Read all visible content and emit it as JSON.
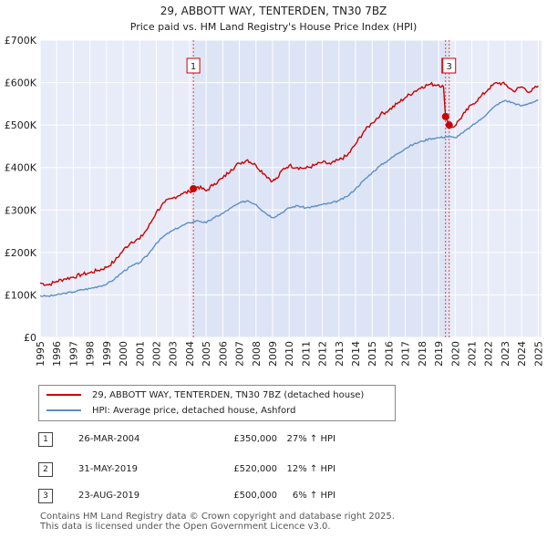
{
  "chart_data": {
    "type": "line",
    "title": "29, ABBOTT WAY, TENTERDEN, TN30 7BZ",
    "subtitle": "Price paid vs. HM Land Registry's House Price Index (HPI)",
    "xlabel": "",
    "ylabel": "",
    "xlim": [
      1995,
      2025.2
    ],
    "ylim": [
      0,
      700000
    ],
    "y_ticks": [
      {
        "value": 0,
        "label": "£0"
      },
      {
        "value": 100000,
        "label": "£100K"
      },
      {
        "value": 200000,
        "label": "£200K"
      },
      {
        "value": 300000,
        "label": "£300K"
      },
      {
        "value": 400000,
        "label": "£400K"
      },
      {
        "value": 500000,
        "label": "£500K"
      },
      {
        "value": 600000,
        "label": "£600K"
      },
      {
        "value": 700000,
        "label": "£700K"
      }
    ],
    "x_ticks": [
      "1995",
      "1996",
      "1997",
      "1998",
      "1999",
      "2000",
      "2001",
      "2002",
      "2003",
      "2004",
      "2005",
      "2006",
      "2007",
      "2008",
      "2009",
      "2010",
      "2011",
      "2012",
      "2013",
      "2014",
      "2015",
      "2016",
      "2017",
      "2018",
      "2019",
      "2020",
      "2021",
      "2022",
      "2023",
      "2024",
      "2025"
    ],
    "grid": true,
    "shaded_region": [
      2004.23,
      2019.64
    ],
    "series": [
      {
        "name": "29, ABBOTT WAY, TENTERDEN, TN30 7BZ (detached house)",
        "color": "#cc0000",
        "x": [
          1995,
          1995.5,
          1996,
          1996.5,
          1997,
          1997.5,
          1998,
          1998.5,
          1999,
          1999.5,
          2000,
          2000.5,
          2001,
          2001.5,
          2002,
          2002.5,
          2003,
          2003.5,
          2004,
          2004.23,
          2004.5,
          2005,
          2005.5,
          2006,
          2006.5,
          2007,
          2007.5,
          2008,
          2008.5,
          2009,
          2009.3,
          2009.6,
          2010,
          2010.5,
          2011,
          2011.5,
          2012,
          2012.5,
          2013,
          2013.5,
          2014,
          2014.5,
          2015,
          2015.5,
          2016,
          2016.5,
          2017,
          2017.5,
          2018,
          2018.5,
          2019,
          2019.3,
          2019.42,
          2019.64,
          2019.9,
          2020.2,
          2020.6,
          2021,
          2021.5,
          2022,
          2022.5,
          2023,
          2023.5,
          2024,
          2024.5,
          2025
        ],
        "values": [
          128000,
          124000,
          132000,
          138000,
          142000,
          148000,
          152000,
          158000,
          165000,
          180000,
          205000,
          225000,
          232000,
          258000,
          295000,
          318000,
          328000,
          338000,
          343000,
          350000,
          355000,
          345000,
          362000,
          375000,
          395000,
          410000,
          418000,
          405000,
          385000,
          368000,
          375000,
          395000,
          405000,
          400000,
          398000,
          405000,
          412000,
          408000,
          418000,
          428000,
          455000,
          485000,
          505000,
          525000,
          535000,
          550000,
          565000,
          578000,
          590000,
          596000,
          595000,
          590000,
          520000,
          500000,
          495000,
          510000,
          530000,
          548000,
          565000,
          585000,
          600000,
          596000,
          580000,
          590000,
          578000,
          592000
        ]
      },
      {
        "name": "HPI: Average price, detached house, Ashford",
        "color": "#5b8fc7",
        "x": [
          1995,
          1995.5,
          1996,
          1996.5,
          1997,
          1997.5,
          1998,
          1998.5,
          1999,
          1999.5,
          2000,
          2000.5,
          2001,
          2001.5,
          2002,
          2002.5,
          2003,
          2003.5,
          2004,
          2004.5,
          2005,
          2005.5,
          2006,
          2006.5,
          2007,
          2007.5,
          2008,
          2008.5,
          2009,
          2009.5,
          2010,
          2010.5,
          2011,
          2011.5,
          2012,
          2012.5,
          2013,
          2013.5,
          2014,
          2014.5,
          2015,
          2015.5,
          2016,
          2016.5,
          2017,
          2017.5,
          2018,
          2018.5,
          2019,
          2019.5,
          2020,
          2020.5,
          2021,
          2021.5,
          2022,
          2022.5,
          2023,
          2023.5,
          2024,
          2024.5,
          2025
        ],
        "values": [
          98000,
          97000,
          100000,
          104000,
          107000,
          112000,
          115000,
          120000,
          125000,
          138000,
          155000,
          168000,
          176000,
          195000,
          222000,
          240000,
          252000,
          262000,
          270000,
          275000,
          270000,
          282000,
          292000,
          305000,
          316000,
          322000,
          313000,
          295000,
          282000,
          292000,
          305000,
          310000,
          305000,
          308000,
          313000,
          316000,
          322000,
          332000,
          350000,
          370000,
          388000,
          405000,
          418000,
          432000,
          445000,
          455000,
          462000,
          468000,
          470000,
          473000,
          470000,
          483000,
          498000,
          512000,
          530000,
          548000,
          558000,
          552000,
          545000,
          552000,
          558000
        ]
      }
    ],
    "transactions": [
      {
        "number": "1",
        "date": "26-MAR-2004",
        "x": 2004.23,
        "price": 350000,
        "price_label": "£350,000",
        "hpi_change": "27% ↑ HPI"
      },
      {
        "number": "2",
        "date": "31-MAY-2019",
        "x": 2019.42,
        "price": 520000,
        "price_label": "£520,000",
        "hpi_change": "12% ↑ HPI"
      },
      {
        "number": "3",
        "date": "23-AUG-2019",
        "x": 2019.64,
        "price": 500000,
        "price_label": "£500,000",
        "hpi_change": "6% ↑ HPI"
      }
    ],
    "colors": {
      "plot_background": "#e8ecf8",
      "shaded_region": "#dde4f5",
      "grid": "#ffffff",
      "marker_line": "#dd4444"
    }
  },
  "footer": {
    "line1": "Contains HM Land Registry data © Crown copyright and database right 2025.",
    "line2": "This data is licensed under the Open Government Licence v3.0."
  }
}
